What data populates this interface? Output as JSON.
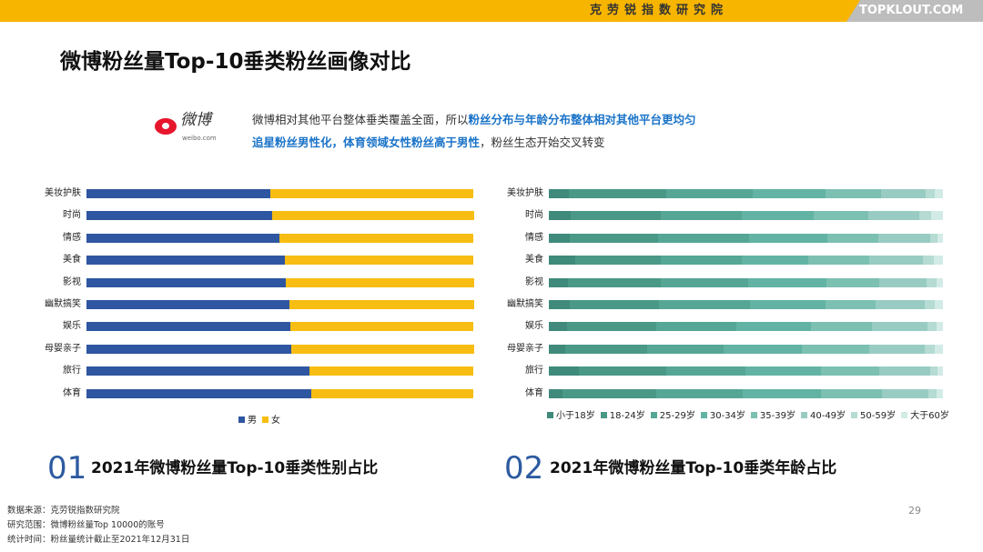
{
  "header": {
    "org": "克劳锐指数研究院",
    "brand": "TOPKLOUT.COM"
  },
  "title": "微博粉丝量Top-10垂类粉丝画像对比",
  "logo": {
    "text": "微博",
    "url": "weibo.com"
  },
  "description": {
    "line1_plain": "微博相对其他平台整体垂类覆盖全面，所以",
    "line1_highlight": "粉丝分布与年龄分布整体相对其他平台更均匀",
    "line2_highlight": "追星粉丝男性化，体育领域女性粉丝高于男性",
    "line2_plain": "，粉丝生态开始交叉转变"
  },
  "sections": [
    {
      "number": "01",
      "title": "2021年微博粉丝量Top-10垂类性别占比"
    },
    {
      "number": "02",
      "title": "2021年微博粉丝量Top-10垂类年龄占比"
    }
  ],
  "page_number": "29",
  "footer": [
    "数据来源：克劳锐指数研究院",
    "研究范围：微博粉丝量Top 10000的账号",
    "统计时间：粉丝量统计截止至2021年12月31日"
  ],
  "chart_data": [
    {
      "type": "bar",
      "orientation": "horizontal",
      "stacked": "percent",
      "categories": [
        "美妆护肤",
        "时尚",
        "情感",
        "美食",
        "影视",
        "幽默搞笑",
        "娱乐",
        "母婴亲子",
        "旅行",
        "体育"
      ],
      "series": [
        {
          "name": "男",
          "color": "#2f56a0",
          "values": [
            47.6,
            48.0,
            49.9,
            51.3,
            51.5,
            52.5,
            52.6,
            53.0,
            57.7,
            58.2
          ]
        },
        {
          "name": "女",
          "color": "#f7bd12",
          "values": [
            52.4,
            52.0,
            50.1,
            48.7,
            48.5,
            47.5,
            47.4,
            47.0,
            42.3,
            41.8
          ]
        }
      ],
      "xlim": [
        0,
        100
      ],
      "legend": "bottom",
      "grid": false
    },
    {
      "type": "bar",
      "orientation": "horizontal",
      "stacked": "percent",
      "categories": [
        "美妆护肤",
        "时尚",
        "情感",
        "美食",
        "影视",
        "幽默搞笑",
        "娱乐",
        "母婴亲子",
        "旅行",
        "体育"
      ],
      "series": [
        {
          "name": "小于18岁",
          "color": "#3f8a7a",
          "values": [
            5.0,
            5.6,
            5.2,
            6.6,
            4.8,
            5.2,
            4.6,
            4.2,
            7.6,
            3.4
          ]
        },
        {
          "name": "18-24岁",
          "color": "#4a9886",
          "values": [
            24.9,
            22.9,
            22.4,
            21.9,
            23.7,
            22.8,
            22.7,
            20.7,
            22.1,
            23.8
          ]
        },
        {
          "name": "25-29岁",
          "color": "#55a695",
          "values": [
            21.8,
            20.5,
            23.2,
            20.5,
            22.1,
            23.1,
            20.3,
            19.5,
            20.1,
            21.9
          ]
        },
        {
          "name": "30-34岁",
          "color": "#62b3a3",
          "values": [
            18.6,
            18.3,
            19.9,
            16.9,
            19.9,
            19.1,
            18.9,
            19.9,
            19.2,
            19.9
          ]
        },
        {
          "name": "35-39岁",
          "color": "#7cc0b2",
          "values": [
            14.1,
            13.7,
            12.8,
            15.5,
            13.4,
            12.8,
            15.5,
            17.1,
            14.9,
            15.5
          ]
        },
        {
          "name": "40-49岁",
          "color": "#98ccc2",
          "values": [
            11.1,
            12.9,
            13.3,
            13.5,
            12.0,
            12.4,
            14.1,
            13.9,
            12.9,
            11.9
          ]
        },
        {
          "name": "50-59岁",
          "color": "#b5dbd3",
          "values": [
            2.5,
            3.0,
            1.8,
            2.8,
            2.4,
            2.5,
            2.2,
            2.6,
            1.8,
            2.0
          ]
        },
        {
          "name": "大于60岁",
          "color": "#d2ebe6",
          "values": [
            2.0,
            3.1,
            1.4,
            2.3,
            1.7,
            2.1,
            1.7,
            2.1,
            1.4,
            1.6
          ]
        }
      ],
      "xlim": [
        0,
        100
      ],
      "legend": "bottom",
      "grid": false
    }
  ]
}
